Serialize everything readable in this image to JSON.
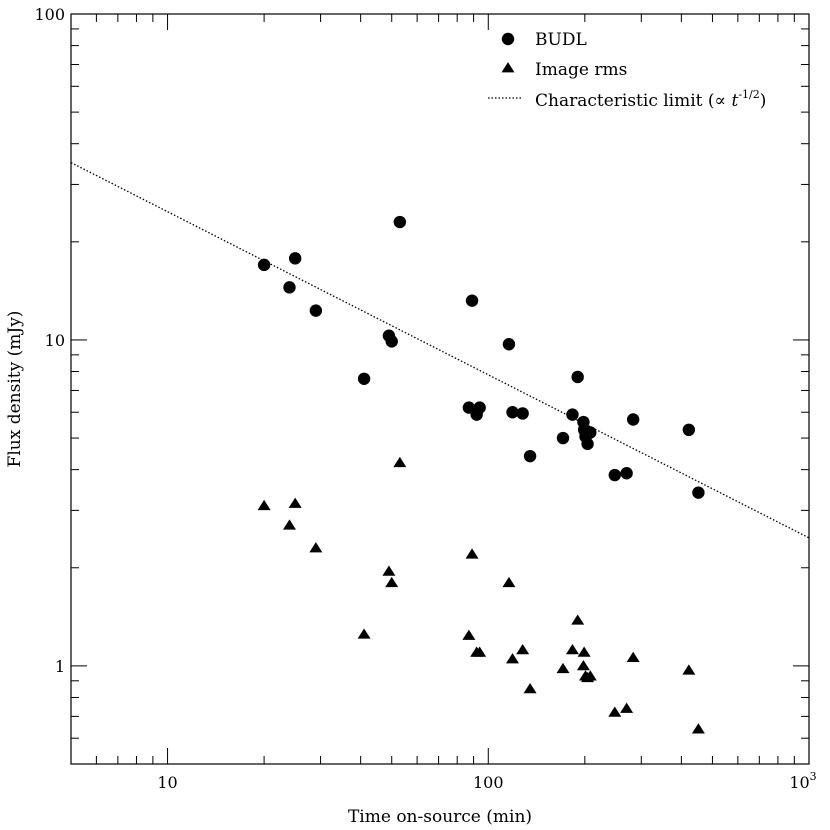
{
  "chart_data": {
    "type": "scatter",
    "title": "",
    "xlabel": "Time on-source (min)",
    "ylabel": "Flux density (mJy)",
    "x_scale": "log",
    "y_scale": "log",
    "xlim": [
      5,
      1000
    ],
    "ylim": [
      0.5,
      100
    ],
    "x_tick_labels": [
      "10",
      "100",
      "10^3"
    ],
    "y_tick_labels": [
      "1",
      "10",
      "100"
    ],
    "grid": false,
    "legend_position": "top-right",
    "legend": [
      "BUDL",
      "Image rms",
      "Characteristic limit (∝ t^-1/2)"
    ],
    "series": [
      {
        "name": "BUDL",
        "marker": "circle",
        "points": [
          [
            20,
            17
          ],
          [
            24,
            14.5
          ],
          [
            25,
            17.8
          ],
          [
            29,
            12.3
          ],
          [
            41,
            7.6
          ],
          [
            49,
            10.3
          ],
          [
            50,
            9.9
          ],
          [
            53,
            23
          ],
          [
            87,
            6.2
          ],
          [
            89,
            13.2
          ],
          [
            92,
            5.9
          ],
          [
            94,
            6.2
          ],
          [
            116,
            9.7
          ],
          [
            119,
            6
          ],
          [
            128,
            5.95
          ],
          [
            135,
            4.4
          ],
          [
            171,
            5
          ],
          [
            183,
            5.9
          ],
          [
            190,
            7.7
          ],
          [
            198,
            5.6
          ],
          [
            199,
            5.3
          ],
          [
            201,
            5.05
          ],
          [
            204,
            4.8
          ],
          [
            208,
            5.2
          ],
          [
            248,
            3.85
          ],
          [
            270,
            3.9
          ],
          [
            283,
            5.7
          ],
          [
            422,
            5.3
          ],
          [
            452,
            3.4
          ]
        ]
      },
      {
        "name": "Image rms",
        "marker": "triangle",
        "points": [
          [
            20,
            3.1
          ],
          [
            24,
            2.7
          ],
          [
            25,
            3.15
          ],
          [
            29,
            2.3
          ],
          [
            41,
            1.25
          ],
          [
            49,
            1.95
          ],
          [
            50,
            1.8
          ],
          [
            53,
            4.2
          ],
          [
            87,
            1.24
          ],
          [
            89,
            2.2
          ],
          [
            92,
            1.1
          ],
          [
            94,
            1.1
          ],
          [
            116,
            1.8
          ],
          [
            119,
            1.05
          ],
          [
            128,
            1.12
          ],
          [
            135,
            0.85
          ],
          [
            171,
            0.98
          ],
          [
            183,
            1.12
          ],
          [
            190,
            1.38
          ],
          [
            198,
            1.0
          ],
          [
            199,
            1.1
          ],
          [
            201,
            0.93
          ],
          [
            204,
            0.92
          ],
          [
            208,
            0.93
          ],
          [
            248,
            0.72
          ],
          [
            270,
            0.74
          ],
          [
            283,
            1.06
          ],
          [
            422,
            0.97
          ],
          [
            452,
            0.64
          ]
        ]
      },
      {
        "name": "Characteristic limit (∝ t^-1/2)",
        "line_style": "dotted",
        "points": [
          [
            5,
            35
          ],
          [
            1000,
            2.47
          ]
        ]
      }
    ]
  },
  "colors": {
    "ink": "#000000",
    "background": "#ffffff"
  }
}
